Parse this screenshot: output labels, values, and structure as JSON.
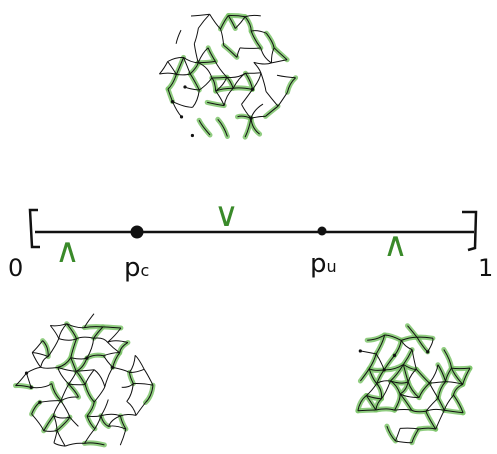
{
  "axis": {
    "start_label": "0",
    "end_label": "1"
  },
  "points": [
    {
      "label": "p",
      "subscript": "c"
    },
    {
      "label": "p",
      "subscript": "u"
    }
  ],
  "marks": [
    "∧",
    "∨",
    "∧"
  ]
}
